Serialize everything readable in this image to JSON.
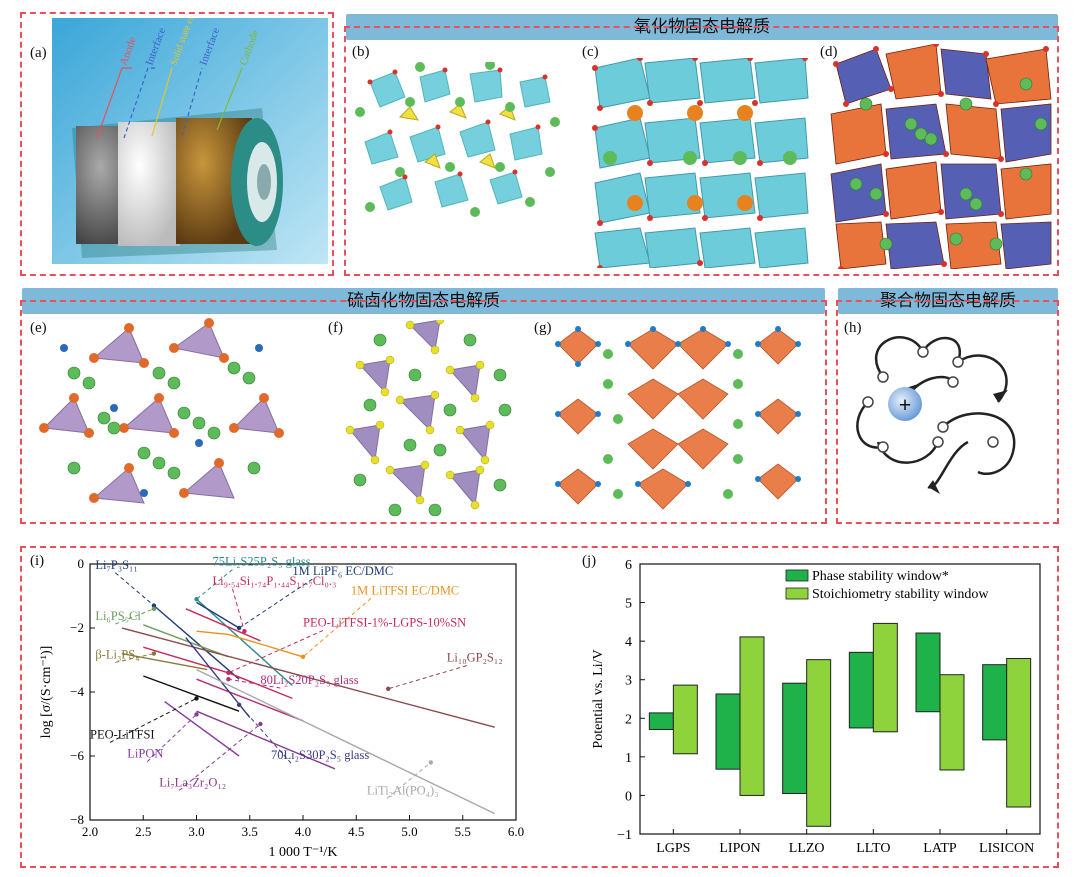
{
  "panels": {
    "a": "(a)",
    "b": "(b)",
    "c": "(c)",
    "d": "(d)",
    "e": "(e)",
    "f": "(f)",
    "g": "(g)",
    "h": "(h)",
    "i": "(i)",
    "j": "(j)"
  },
  "banners": {
    "oxide": "氧化物固态电解质",
    "sulfide": "硫卤化物固态电解质",
    "polymer": "聚合物固态电解质"
  },
  "battery_labels": {
    "anode": "Anode",
    "interface1": "Interface",
    "sse": "Solid state electrolyte",
    "interface2": "Interface",
    "cathode": "Cathode"
  },
  "polymer_ion": "+",
  "colors": {
    "teal_polyhedra": "#5ec7d6",
    "orange_polyhedra": "#e8743c",
    "purple_polyhedra": "#8f7bb5",
    "li_green": "#5dbb5a",
    "o_red": "#d9312b",
    "panel_border": "#e8505b",
    "phase_bar": "#1fb24a",
    "stoich_bar": "#8ed33b"
  },
  "chart_data": [
    {
      "type": "line",
      "xlabel": "1 000 T⁻¹/K",
      "ylabel": "log [σ/(S·cm⁻¹)]",
      "xlim": [
        2.0,
        6.0
      ],
      "ylim": [
        -8,
        0
      ],
      "xticks": [
        "2.0",
        "2.5",
        "3.0",
        "3.5",
        "4.0",
        "4.5",
        "5.0",
        "5.5",
        "6.0"
      ],
      "yticks": [
        "0",
        "−2",
        "−4",
        "−6",
        "−8"
      ],
      "series": [
        {
          "name": "Li7P3S11",
          "label": "Li₇P₃S₁₁",
          "color": "#1f3b7a",
          "points": [
            [
              2.6,
              -1.3
            ],
            [
              3.4,
              -3.6
            ]
          ]
        },
        {
          "name": "75Li2S25P2S5 glass",
          "label": "75Li₂S25P₂S₅ glass",
          "color": "#2a8d8d",
          "points": [
            [
              3.0,
              -1.1
            ],
            [
              3.9,
              -3.8
            ]
          ]
        },
        {
          "name": "1M LiPF6 EC/DMC",
          "label": "1M LiPF₆ EC/DMC",
          "color": "#1f3b7a",
          "points": [
            [
              3.0,
              -1.2
            ],
            [
              3.4,
              -2.0
            ]
          ]
        },
        {
          "name": "Li9.54Si1.74P1.44S11.7Cl0.3",
          "label": "Li₉.₅₄Si₁.₇₄P₁.₄₄S₁₁.₇Cl₀.₃",
          "color": "#c72a5c",
          "points": [
            [
              2.9,
              -1.4
            ],
            [
              3.6,
              -2.4
            ]
          ]
        },
        {
          "name": "1M LiTFSI EC/DMC",
          "label": "1M LiTFSI EC/DMC",
          "color": "#e8921f",
          "points": [
            [
              3.0,
              -2.1
            ],
            [
              3.3,
              -2.2
            ],
            [
              3.6,
              -2.5
            ],
            [
              4.0,
              -2.9
            ]
          ]
        },
        {
          "name": "Li6PS5Cl",
          "label": "Li₆PS₅Cl",
          "color": "#6b9e5e",
          "points": [
            [
              2.5,
              -1.9
            ],
            [
              3.3,
              -2.9
            ]
          ]
        },
        {
          "name": "PEO-LiTFSI-1%-LGPS-10%SN",
          "label": "PEO-LiTFSI-1%-LGPS-10%SN",
          "color": "#c72a5c",
          "points": [
            [
              2.5,
              -2.6
            ],
            [
              3.3,
              -3.4
            ],
            [
              3.9,
              -4.2
            ]
          ]
        },
        {
          "name": "β-Li3PS4",
          "label": "β-Li₃PS₄",
          "color": "#8a7a3a",
          "points": [
            [
              2.3,
              -2.8
            ],
            [
              3.1,
              -3.3
            ]
          ]
        },
        {
          "name": "Li10GP2S12",
          "label": "Li₁₀GP₂S₁₂",
          "color": "#8a4a4a",
          "points": [
            [
              2.3,
              -2.0
            ],
            [
              5.8,
              -5.1
            ]
          ]
        },
        {
          "name": "80Li2S20P2S5 glass",
          "label": "80Li₂S20P₂S₅ glass",
          "color": "#b0307a",
          "points": [
            [
              3.0,
              -3.6
            ],
            [
              4.0,
              -4.9
            ]
          ]
        },
        {
          "name": "PEO-LiTFSI",
          "label": "PEO-LiTFSI",
          "color": "#111111",
          "points": [
            [
              2.5,
              -3.5
            ],
            [
              3.4,
              -4.6
            ]
          ]
        },
        {
          "name": "70Li2S30P2S5 glass",
          "label": "70Li₂S30P₂S₅ glass",
          "color": "#3a3a8a",
          "points": [
            [
              2.9,
              -2.3
            ],
            [
              3.5,
              -4.8
            ]
          ]
        },
        {
          "name": "LiPON",
          "label": "LiPON",
          "color": "#8a3aa8",
          "points": [
            [
              2.7,
              -4.3
            ],
            [
              3.4,
              -6.0
            ]
          ]
        },
        {
          "name": "Li7La3Zr2O12",
          "label": "Li₇La₃Zr₂O₁₂",
          "color": "#8a3a8a",
          "points": [
            [
              3.0,
              -4.6
            ],
            [
              4.3,
              -6.4
            ]
          ]
        },
        {
          "name": "LiTi2Al(PO4)3",
          "label": "LiTi₂Al(PO₄)₃",
          "color": "#a8a8a8",
          "points": [
            [
              3.0,
              -3.3
            ],
            [
              5.8,
              -7.8
            ]
          ]
        }
      ]
    },
    {
      "type": "bar",
      "ylabel": "Potential vs. Li/V",
      "ylim": [
        -1,
        6
      ],
      "yticks": [
        "6",
        "5",
        "4",
        "3",
        "2",
        "1",
        "0",
        "−1"
      ],
      "categories": [
        "LGPS",
        "LIPON",
        "LLZO",
        "LLTO",
        "LATP",
        "LISICON"
      ],
      "legend": "top-right",
      "series": [
        {
          "name": "Phase stability window*",
          "ranges": [
            [
              1.71,
              2.14
            ],
            [
              0.68,
              2.63
            ],
            [
              0.05,
              2.91
            ],
            [
              1.75,
              3.71
            ],
            [
              2.17,
              4.21
            ],
            [
              1.44,
              3.39
            ]
          ]
        },
        {
          "name": "Stoichiometry stability window",
          "ranges": [
            [
              1.08,
              2.86
            ],
            [
              0.0,
              4.11
            ],
            [
              -0.8,
              3.52
            ],
            [
              1.65,
              4.46
            ],
            [
              0.66,
              3.13
            ],
            [
              -0.3,
              3.55
            ]
          ]
        }
      ]
    }
  ]
}
